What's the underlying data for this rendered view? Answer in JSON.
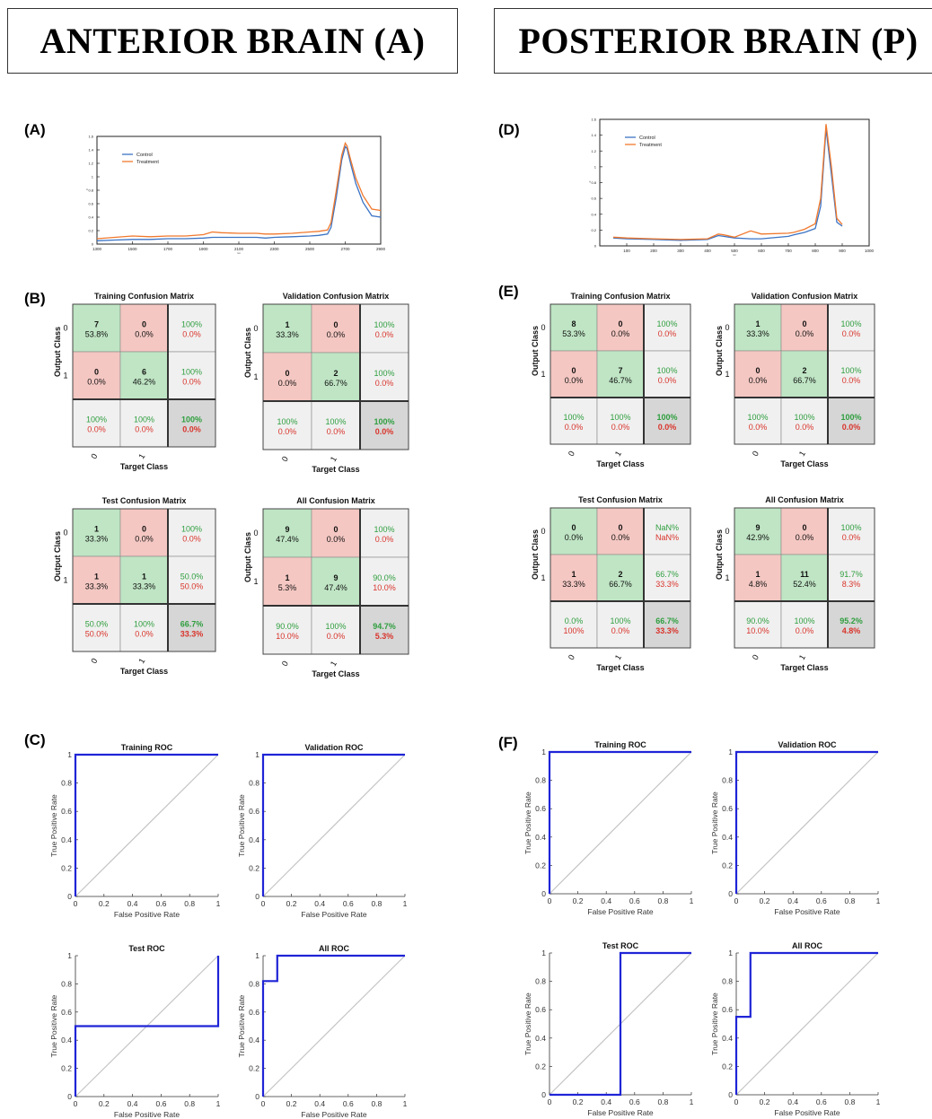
{
  "headers": {
    "left": "ANTERIOR BRAIN (A)",
    "right": "POSTERIOR BRAIN (P)"
  },
  "panel_labels": {
    "A": "(A)",
    "B": "(B)",
    "C": "(C)",
    "D": "(D)",
    "E": "(E)",
    "F": "(F)"
  },
  "colors": {
    "control": "#3b73c4",
    "treatment": "#f0782d",
    "cm_green": "#bfe5c4",
    "cm_red": "#f4c7c2",
    "cm_gray": "#f0f0f0",
    "cm_dark": "#d6d6d6",
    "pct_green": "#2e9e3e",
    "pct_red": "#d9342b",
    "roc_line": "#1f24d6",
    "roc_diag": "#c4c4c4"
  },
  "chart_data": [
    {
      "id": "A",
      "type": "line",
      "series": [
        {
          "name": "Control",
          "x": [
            1300,
            1400,
            1500,
            1600,
            1700,
            1800,
            1900,
            1950,
            2100,
            2200,
            2250,
            2300,
            2400,
            2500,
            2550,
            2600,
            2620,
            2650,
            2680,
            2700,
            2710,
            2730,
            2760,
            2800,
            2850,
            2900
          ],
          "y": [
            0.05,
            0.06,
            0.07,
            0.07,
            0.08,
            0.08,
            0.09,
            0.1,
            0.1,
            0.1,
            0.09,
            0.1,
            0.11,
            0.12,
            0.13,
            0.15,
            0.25,
            0.7,
            1.25,
            1.45,
            1.42,
            1.2,
            0.9,
            0.62,
            0.42,
            0.4
          ]
        },
        {
          "name": "Treatment",
          "x": [
            1300,
            1400,
            1500,
            1600,
            1700,
            1800,
            1900,
            1950,
            2000,
            2100,
            2200,
            2250,
            2300,
            2400,
            2500,
            2550,
            2600,
            2620,
            2650,
            2680,
            2700,
            2710,
            2730,
            2760,
            2800,
            2850,
            2900
          ],
          "y": [
            0.08,
            0.1,
            0.12,
            0.11,
            0.12,
            0.12,
            0.14,
            0.18,
            0.17,
            0.16,
            0.16,
            0.15,
            0.15,
            0.16,
            0.18,
            0.19,
            0.21,
            0.32,
            0.8,
            1.32,
            1.5,
            1.46,
            1.26,
            0.98,
            0.72,
            0.52,
            0.5
          ]
        }
      ],
      "xlim": [
        1300,
        2900
      ],
      "xticks": [
        1300,
        1500,
        1700,
        1900,
        2100,
        2300,
        2500,
        2700,
        2900
      ],
      "ylim": [
        0,
        1.6
      ],
      "yticks": [
        0,
        0.2,
        0.4,
        0.6,
        0.8,
        1,
        1.2,
        1.4,
        1.6
      ],
      "xtick_labels": [
        "1300",
        "1500",
        "1700",
        "1900",
        "2100",
        "2300",
        "2500",
        "2700",
        "2900"
      ],
      "ytick_labels": [
        "0",
        "0.2",
        "0.4",
        "0.6",
        "0.8",
        "1",
        "1.2",
        "1.4",
        "1.6"
      ],
      "xlabel": "nm",
      "ylabel": "A",
      "grid": false,
      "legend": "top-left"
    },
    {
      "id": "D",
      "type": "line",
      "series": [
        {
          "name": "Control",
          "x": [
            50,
            100,
            200,
            300,
            400,
            440,
            460,
            500,
            560,
            600,
            700,
            720,
            760,
            800,
            820,
            840,
            860,
            880,
            900
          ],
          "y": [
            0.1,
            0.09,
            0.08,
            0.07,
            0.08,
            0.13,
            0.12,
            0.1,
            0.09,
            0.09,
            0.12,
            0.14,
            0.17,
            0.22,
            0.5,
            1.48,
            0.9,
            0.3,
            0.25
          ]
        },
        {
          "name": "Treatment",
          "x": [
            50,
            100,
            200,
            300,
            400,
            440,
            460,
            500,
            560,
            580,
            600,
            700,
            720,
            760,
            800,
            820,
            840,
            860,
            880,
            900
          ],
          "y": [
            0.11,
            0.1,
            0.09,
            0.08,
            0.09,
            0.15,
            0.14,
            0.11,
            0.19,
            0.17,
            0.15,
            0.16,
            0.17,
            0.21,
            0.28,
            0.6,
            1.54,
            1.0,
            0.35,
            0.27
          ]
        }
      ],
      "xlim": [
        0,
        1000
      ],
      "xticks": [
        100,
        200,
        300,
        400,
        500,
        600,
        700,
        800,
        900,
        1000
      ],
      "ylim": [
        0,
        1.6
      ],
      "yticks": [
        0,
        0.2,
        0.4,
        0.6,
        0.8,
        1,
        1.2,
        1.4,
        1.6
      ],
      "xtick_labels": [
        "100",
        "200",
        "300",
        "400",
        "500",
        "600",
        "700",
        "800",
        "900",
        "1000"
      ],
      "ytick_labels": [
        "0",
        "0.2",
        "0.4",
        "0.6",
        "0.8",
        "1",
        "1.2",
        "1.4",
        "1.6"
      ],
      "xlabel": "nm",
      "ylabel": "A",
      "grid": false,
      "legend": "top-left"
    },
    {
      "id": "B1",
      "type": "table",
      "title": "Training Confusion Matrix",
      "cells": [
        [
          "7",
          "53.8%"
        ],
        [
          "0",
          "0.0%"
        ],
        [
          "100%",
          "0.0%"
        ],
        [
          "0",
          "0.0%"
        ],
        [
          "6",
          "46.2%"
        ],
        [
          "100%",
          "0.0%"
        ],
        [
          "100%",
          "0.0%"
        ],
        [
          "100%",
          "0.0%"
        ],
        [
          "100%",
          "0.0%"
        ]
      ],
      "xlabel": "Target Class",
      "ylabel": "Output Class",
      "classes": [
        "0",
        "1"
      ]
    },
    {
      "id": "B2",
      "type": "table",
      "title": "Validation Confusion Matrix",
      "cells": [
        [
          "1",
          "33.3%"
        ],
        [
          "0",
          "0.0%"
        ],
        [
          "100%",
          "0.0%"
        ],
        [
          "0",
          "0.0%"
        ],
        [
          "2",
          "66.7%"
        ],
        [
          "100%",
          "0.0%"
        ],
        [
          "100%",
          "0.0%"
        ],
        [
          "100%",
          "0.0%"
        ],
        [
          "100%",
          "0.0%"
        ]
      ],
      "xlabel": "Target Class",
      "ylabel": "Output Class",
      "classes": [
        "0",
        "1"
      ]
    },
    {
      "id": "B3",
      "type": "table",
      "title": "Test Confusion Matrix",
      "cells": [
        [
          "1",
          "33.3%"
        ],
        [
          "0",
          "0.0%"
        ],
        [
          "100%",
          "0.0%"
        ],
        [
          "1",
          "33.3%"
        ],
        [
          "1",
          "33.3%"
        ],
        [
          "50.0%",
          "50.0%"
        ],
        [
          "50.0%",
          "50.0%"
        ],
        [
          "100%",
          "0.0%"
        ],
        [
          "66.7%",
          "33.3%"
        ]
      ],
      "xlabel": "Target Class",
      "ylabel": "Output Class",
      "classes": [
        "0",
        "1"
      ]
    },
    {
      "id": "B4",
      "type": "table",
      "title": "All Confusion Matrix",
      "cells": [
        [
          "9",
          "47.4%"
        ],
        [
          "0",
          "0.0%"
        ],
        [
          "100%",
          "0.0%"
        ],
        [
          "1",
          "5.3%"
        ],
        [
          "9",
          "47.4%"
        ],
        [
          "90.0%",
          "10.0%"
        ],
        [
          "90.0%",
          "10.0%"
        ],
        [
          "100%",
          "0.0%"
        ],
        [
          "94.7%",
          "5.3%"
        ]
      ],
      "xlabel": "Target Class",
      "ylabel": "Output Class",
      "classes": [
        "0",
        "1"
      ]
    },
    {
      "id": "E1",
      "type": "table",
      "title": "Training Confusion Matrix",
      "cells": [
        [
          "8",
          "53.3%"
        ],
        [
          "0",
          "0.0%"
        ],
        [
          "100%",
          "0.0%"
        ],
        [
          "0",
          "0.0%"
        ],
        [
          "7",
          "46.7%"
        ],
        [
          "100%",
          "0.0%"
        ],
        [
          "100%",
          "0.0%"
        ],
        [
          "100%",
          "0.0%"
        ],
        [
          "100%",
          "0.0%"
        ]
      ],
      "xlabel": "Target Class",
      "ylabel": "Output Class",
      "classes": [
        "0",
        "1"
      ]
    },
    {
      "id": "E2",
      "type": "table",
      "title": "Validation Confusion Matrix",
      "cells": [
        [
          "1",
          "33.3%"
        ],
        [
          "0",
          "0.0%"
        ],
        [
          "100%",
          "0.0%"
        ],
        [
          "0",
          "0.0%"
        ],
        [
          "2",
          "66.7%"
        ],
        [
          "100%",
          "0.0%"
        ],
        [
          "100%",
          "0.0%"
        ],
        [
          "100%",
          "0.0%"
        ],
        [
          "100%",
          "0.0%"
        ]
      ],
      "xlabel": "Target Class",
      "ylabel": "Output Class",
      "classes": [
        "0",
        "1"
      ]
    },
    {
      "id": "E3",
      "type": "table",
      "title": "Test Confusion Matrix",
      "cells": [
        [
          "0",
          "0.0%"
        ],
        [
          "0",
          "0.0%"
        ],
        [
          "NaN%",
          "NaN%"
        ],
        [
          "1",
          "33.3%"
        ],
        [
          "2",
          "66.7%"
        ],
        [
          "66.7%",
          "33.3%"
        ],
        [
          "0.0%",
          "100%"
        ],
        [
          "100%",
          "0.0%"
        ],
        [
          "66.7%",
          "33.3%"
        ]
      ],
      "xlabel": "Target Class",
      "ylabel": "Output Class",
      "classes": [
        "0",
        "1"
      ]
    },
    {
      "id": "E4",
      "type": "table",
      "title": "All Confusion Matrix",
      "cells": [
        [
          "9",
          "42.9%"
        ],
        [
          "0",
          "0.0%"
        ],
        [
          "100%",
          "0.0%"
        ],
        [
          "1",
          "4.8%"
        ],
        [
          "11",
          "52.4%"
        ],
        [
          "91.7%",
          "8.3%"
        ],
        [
          "90.0%",
          "10.0%"
        ],
        [
          "100%",
          "0.0%"
        ],
        [
          "95.2%",
          "4.8%"
        ]
      ],
      "xlabel": "Target Class",
      "ylabel": "Output Class",
      "classes": [
        "0",
        "1"
      ]
    },
    {
      "id": "C1",
      "type": "line",
      "title": "Training ROC",
      "xlabel": "False Positive Rate",
      "ylabel": "True Positive Rate",
      "x": [
        0,
        0,
        1
      ],
      "y": [
        0,
        1,
        1
      ],
      "xlim": [
        0,
        1
      ],
      "ylim": [
        0,
        1
      ],
      "xticks": [
        "0",
        "0.2",
        "0.4",
        "0.6",
        "0.8",
        "1"
      ],
      "yticks": [
        "0",
        "0.2",
        "0.4",
        "0.6",
        "0.8",
        "1"
      ]
    },
    {
      "id": "C2",
      "type": "line",
      "title": "Validation ROC",
      "xlabel": "False Positive Rate",
      "ylabel": "True Positive Rate",
      "x": [
        0,
        0,
        1
      ],
      "y": [
        0,
        1,
        1
      ],
      "xlim": [
        0,
        1
      ],
      "ylim": [
        0,
        1
      ],
      "xticks": [
        "0",
        "0.2",
        "0.4",
        "0.6",
        "0.8",
        "1"
      ],
      "yticks": [
        "0",
        "0.2",
        "0.4",
        "0.6",
        "0.8",
        "1"
      ]
    },
    {
      "id": "C3",
      "type": "line",
      "title": "Test ROC",
      "xlabel": "False Positive Rate",
      "ylabel": "True Positive Rate",
      "x": [
        0,
        0,
        1,
        1
      ],
      "y": [
        0,
        0.5,
        0.5,
        1
      ],
      "xlim": [
        0,
        1
      ],
      "ylim": [
        0,
        1
      ],
      "xticks": [
        "0",
        "0.2",
        "0.4",
        "0.6",
        "0.8",
        "1"
      ],
      "yticks": [
        "0",
        "0.2",
        "0.4",
        "0.6",
        "0.8",
        "1"
      ]
    },
    {
      "id": "C4",
      "type": "line",
      "title": "All ROC",
      "xlabel": "False Positive Rate",
      "ylabel": "True Positive Rate",
      "x": [
        0,
        0,
        0.1,
        0.1,
        1
      ],
      "y": [
        0,
        0.82,
        0.82,
        1,
        1
      ],
      "xlim": [
        0,
        1
      ],
      "ylim": [
        0,
        1
      ],
      "xticks": [
        "0",
        "0.2",
        "0.4",
        "0.6",
        "0.8",
        "1"
      ],
      "yticks": [
        "0",
        "0.2",
        "0.4",
        "0.6",
        "0.8",
        "1"
      ]
    },
    {
      "id": "F1",
      "type": "line",
      "title": "Training ROC",
      "xlabel": "False Positive Rate",
      "ylabel": "True Positive Rate",
      "x": [
        0,
        0,
        1
      ],
      "y": [
        0,
        1,
        1
      ],
      "xlim": [
        0,
        1
      ],
      "ylim": [
        0,
        1
      ],
      "xticks": [
        "0",
        "0.2",
        "0.4",
        "0.6",
        "0.8",
        "1"
      ],
      "yticks": [
        "0",
        "0.2",
        "0.4",
        "0.6",
        "0.8",
        "1"
      ]
    },
    {
      "id": "F2",
      "type": "line",
      "title": "Validation ROC",
      "xlabel": "False Positive Rate",
      "ylabel": "True Positive Rate",
      "x": [
        0,
        0,
        1
      ],
      "y": [
        0,
        1,
        1
      ],
      "xlim": [
        0,
        1
      ],
      "ylim": [
        0,
        1
      ],
      "xticks": [
        "0",
        "0.2",
        "0.4",
        "0.6",
        "0.8",
        "1"
      ],
      "yticks": [
        "0",
        "0.2",
        "0.4",
        "0.6",
        "0.8",
        "1"
      ]
    },
    {
      "id": "F3",
      "type": "line",
      "title": "Test ROC",
      "xlabel": "False Positive Rate",
      "ylabel": "True Positive Rate",
      "x": [
        0,
        0.5,
        0.5,
        1
      ],
      "y": [
        0,
        0,
        1,
        1
      ],
      "xlim": [
        0,
        1
      ],
      "ylim": [
        0,
        1
      ],
      "xticks": [
        "0",
        "0.2",
        "0.4",
        "0.6",
        "0.8",
        "1"
      ],
      "yticks": [
        "0",
        "0.2",
        "0.4",
        "0.6",
        "0.8",
        "1"
      ]
    },
    {
      "id": "F4",
      "type": "line",
      "title": "All ROC",
      "xlabel": "False Positive Rate",
      "ylabel": "True Positive Rate",
      "x": [
        0,
        0,
        0.1,
        0.1,
        1
      ],
      "y": [
        0,
        0.55,
        0.55,
        1,
        1
      ],
      "xlim": [
        0,
        1
      ],
      "ylim": [
        0,
        1
      ],
      "xticks": [
        "0",
        "0.2",
        "0.4",
        "0.6",
        "0.8",
        "1"
      ],
      "yticks": [
        "0",
        "0.2",
        "0.4",
        "0.6",
        "0.8",
        "1"
      ]
    }
  ]
}
